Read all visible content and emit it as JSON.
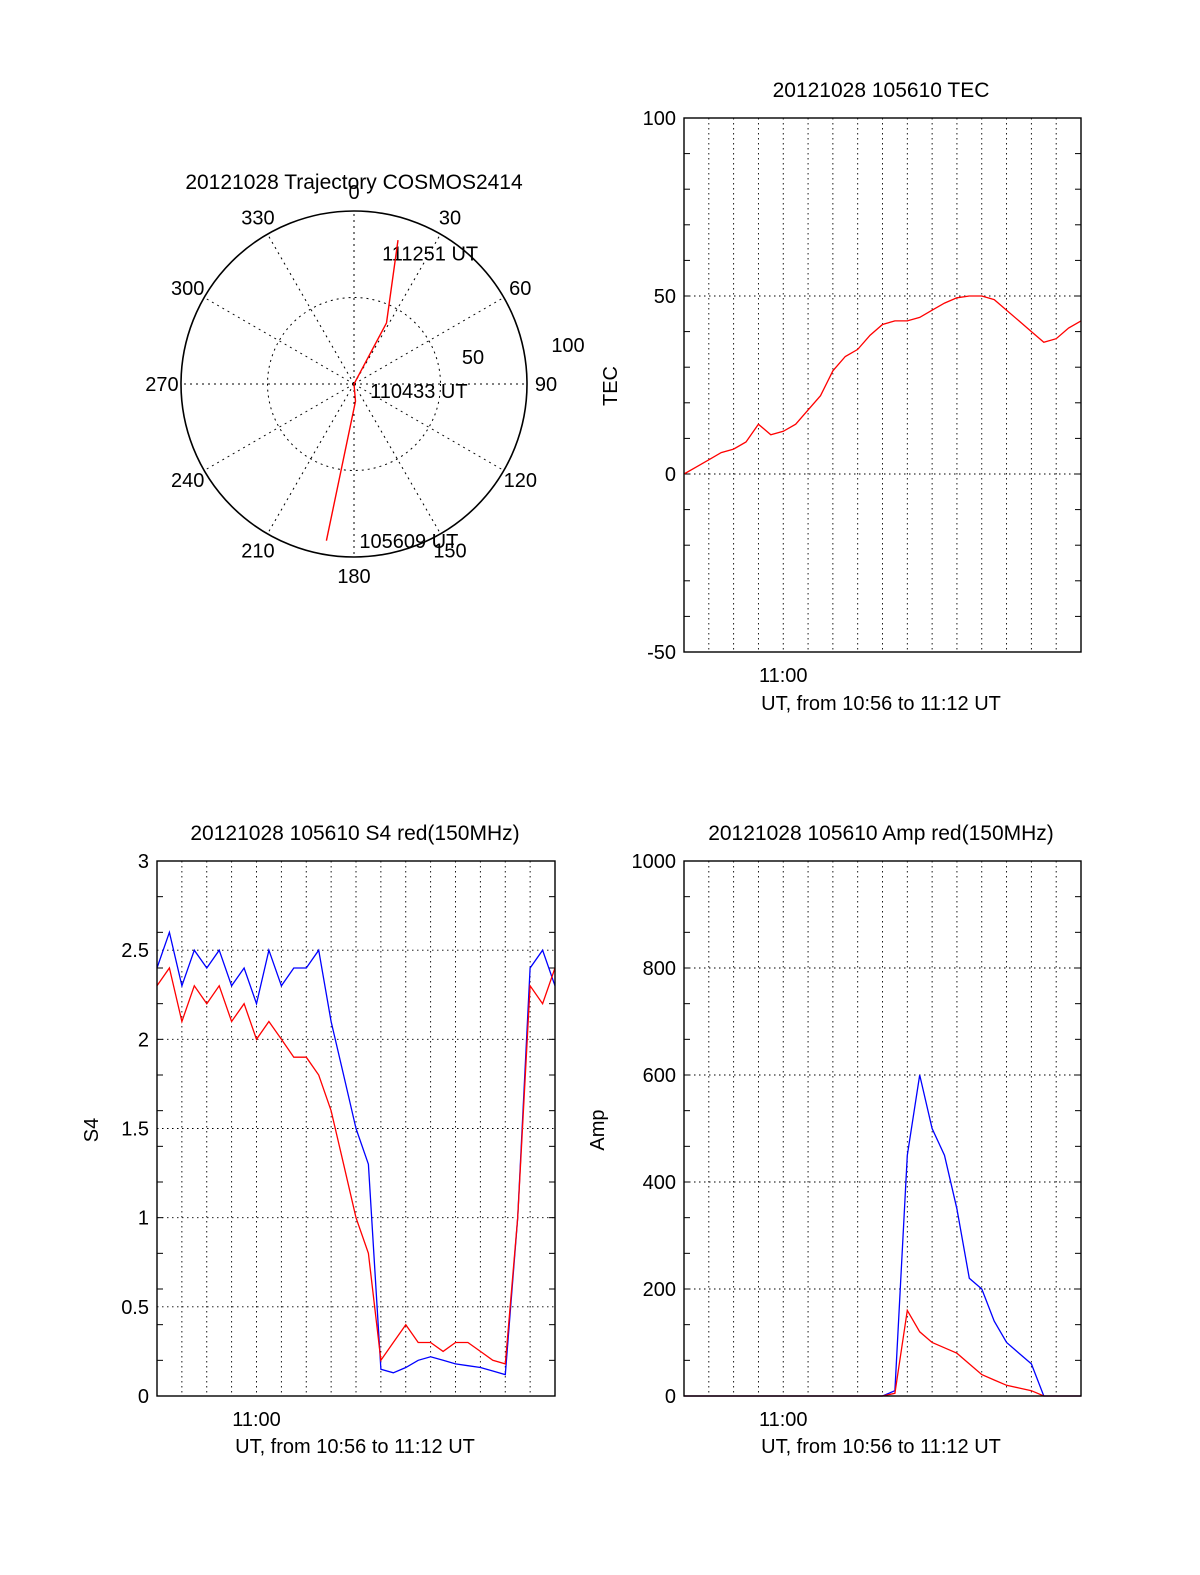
{
  "chart_data": [
    {
      "type": "polar",
      "title": "20121028 Trajectory COSMOS2414",
      "azimuth_labels": [
        "0",
        "30",
        "60",
        "90",
        "120",
        "150",
        "180",
        "210",
        "240",
        "270",
        "300",
        "330"
      ],
      "radial_labels": [
        "50",
        "100"
      ],
      "grid": true,
      "series": [
        {
          "color": "#ff0000",
          "points": [
            {
              "az": 190,
              "r": 92
            },
            {
              "az": 175,
              "r": 10
            },
            {
              "az": 0,
              "r": 0
            },
            {
              "az": 28,
              "r": 40
            },
            {
              "az": 17,
              "r": 87
            }
          ]
        }
      ],
      "annotations": [
        {
          "text": "111251 UT",
          "az": 22,
          "r": 82
        },
        {
          "text": "110433 UT",
          "az": 98,
          "r": 24
        },
        {
          "text": "105609 UT",
          "az": 169,
          "r": 92
        }
      ]
    },
    {
      "type": "line",
      "title": "20121028 105610 TEC",
      "ylabel": "TEC",
      "xlabel": "UT, from 10:56 to 11:12 UT",
      "xlim": [
        0,
        16
      ],
      "ylim": [
        -50,
        100
      ],
      "xticks": [
        {
          "x": 4,
          "label": "11:00"
        }
      ],
      "yticks": [
        -50,
        0,
        50,
        100
      ],
      "grid": true,
      "series": [
        {
          "color": "#ff0000",
          "x": [
            0,
            0.5,
            1,
            1.5,
            2,
            2.5,
            3,
            3.5,
            4,
            4.5,
            5,
            5.5,
            6,
            6.5,
            7,
            7.5,
            8,
            8.5,
            9,
            9.5,
            10,
            10.5,
            11,
            11.5,
            12,
            12.5,
            13,
            13.5,
            14,
            14.5,
            15,
            15.5,
            16
          ],
          "y": [
            0,
            2,
            4,
            6,
            7,
            9,
            14,
            11,
            12,
            14,
            18,
            22,
            29,
            33,
            35,
            39,
            42,
            43,
            43,
            44,
            46,
            48,
            49.5,
            50,
            50,
            49,
            46,
            43,
            40,
            37,
            38,
            41,
            43
          ]
        }
      ]
    },
    {
      "type": "line",
      "title": "20121028 105610 S4 red(150MHz)",
      "ylabel": "S4",
      "xlabel": "UT, from 10:56 to 11:12 UT",
      "xlim": [
        0,
        16
      ],
      "ylim": [
        0,
        3
      ],
      "xticks": [
        {
          "x": 4,
          "label": "11:00"
        }
      ],
      "yticks": [
        "0",
        "0.5",
        "1",
        "1.5",
        "2",
        "2.5",
        "3"
      ],
      "grid": true,
      "series": [
        {
          "color": "#0000ff",
          "x": [
            0,
            0.5,
            1,
            1.5,
            2,
            2.5,
            3,
            3.5,
            4,
            4.5,
            5,
            5.5,
            6,
            6.5,
            7,
            7.5,
            8,
            8.5,
            9,
            9.5,
            10,
            10.5,
            11,
            11.5,
            12,
            12.5,
            13,
            13.5,
            14,
            14.5,
            15,
            15.5,
            16
          ],
          "y": [
            2.4,
            2.6,
            2.3,
            2.5,
            2.4,
            2.5,
            2.3,
            2.4,
            2.2,
            2.5,
            2.3,
            2.4,
            2.4,
            2.5,
            2.1,
            1.8,
            1.5,
            1.3,
            0.15,
            0.13,
            0.16,
            0.2,
            0.22,
            0.2,
            0.18,
            0.17,
            0.16,
            0.14,
            0.12,
            1.0,
            2.4,
            2.5,
            2.3
          ]
        },
        {
          "color": "#ff0000",
          "x": [
            0,
            0.5,
            1,
            1.5,
            2,
            2.5,
            3,
            3.5,
            4,
            4.5,
            5,
            5.5,
            6,
            6.5,
            7,
            7.5,
            8,
            8.5,
            9,
            9.5,
            10,
            10.5,
            11,
            11.5,
            12,
            12.5,
            13,
            13.5,
            14,
            14.5,
            15,
            15.5,
            16
          ],
          "y": [
            2.3,
            2.4,
            2.1,
            2.3,
            2.2,
            2.3,
            2.1,
            2.2,
            2.0,
            2.1,
            2.0,
            1.9,
            1.9,
            1.8,
            1.6,
            1.3,
            1.0,
            0.8,
            0.2,
            0.3,
            0.4,
            0.3,
            0.3,
            0.25,
            0.3,
            0.3,
            0.25,
            0.2,
            0.18,
            1.0,
            2.3,
            2.2,
            2.4
          ]
        }
      ]
    },
    {
      "type": "line",
      "title": "20121028 105610 Amp red(150MHz)",
      "ylabel": "Amp",
      "xlabel": "UT, from 10:56 to 11:12 UT",
      "xlim": [
        0,
        16
      ],
      "ylim": [
        0,
        1000
      ],
      "xticks": [
        {
          "x": 4,
          "label": "11:00"
        }
      ],
      "yticks": [
        0,
        200,
        400,
        600,
        800,
        1000
      ],
      "grid": true,
      "series": [
        {
          "color": "#0000ff",
          "x": [
            0,
            1,
            2,
            3,
            4,
            5,
            6,
            7,
            8,
            8.5,
            9,
            9.5,
            10,
            10.5,
            11,
            11.5,
            12,
            12.5,
            13,
            13.5,
            14,
            14.5,
            15,
            16
          ],
          "y": [
            0,
            0,
            0,
            0,
            0,
            0,
            0,
            0,
            0,
            10,
            450,
            600,
            500,
            450,
            350,
            220,
            200,
            140,
            100,
            80,
            60,
            0,
            0,
            0
          ]
        },
        {
          "color": "#ff0000",
          "x": [
            0,
            1,
            2,
            3,
            4,
            5,
            6,
            7,
            8,
            8.5,
            9,
            9.5,
            10,
            10.5,
            11,
            11.5,
            12,
            12.5,
            13,
            13.5,
            14,
            14.5,
            15,
            16
          ],
          "y": [
            0,
            0,
            0,
            0,
            0,
            0,
            0,
            0,
            0,
            5,
            160,
            120,
            100,
            90,
            80,
            60,
            40,
            30,
            20,
            15,
            10,
            0,
            0,
            0
          ]
        }
      ]
    }
  ]
}
